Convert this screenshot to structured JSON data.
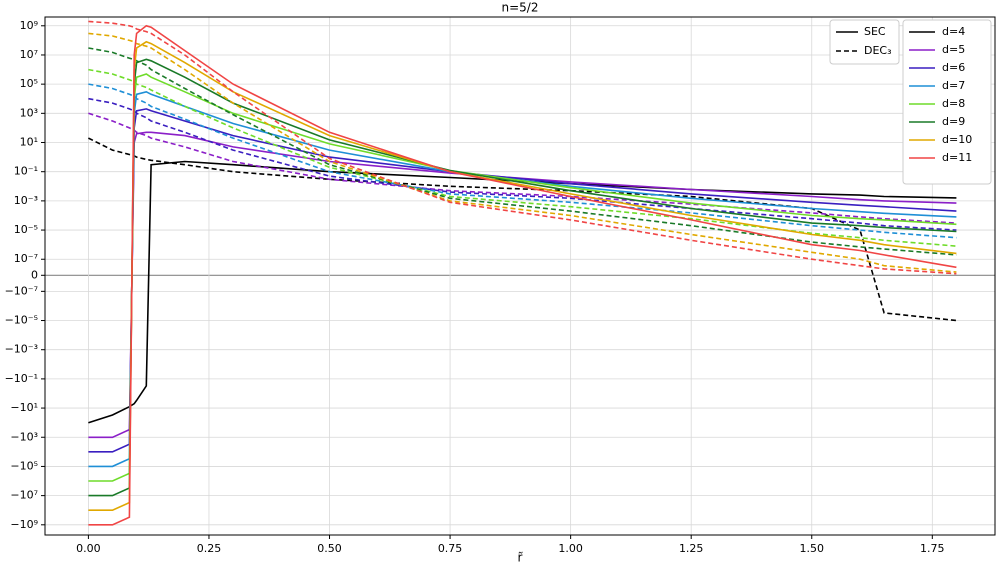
{
  "chart_data": {
    "type": "line",
    "title": "n=5/2",
    "xlabel": "r̃",
    "yscale": "symlog",
    "grid": true,
    "x": [
      0,
      0.05,
      0.085,
      0.095,
      0.1,
      0.12,
      0.13,
      0.2,
      0.3,
      0.5,
      0.75,
      1.0,
      1.25,
      1.5,
      1.6,
      1.65,
      1.8
    ],
    "xlim": [
      -0.09,
      1.88
    ],
    "xticks": [
      {
        "value": 0,
        "label": "0.00"
      },
      {
        "value": 0.25,
        "label": "0.25"
      },
      {
        "value": 0.5,
        "label": "0.50"
      },
      {
        "value": 0.75,
        "label": "0.75"
      },
      {
        "value": 1,
        "label": "1.00"
      },
      {
        "value": 1.25,
        "label": "1.25"
      },
      {
        "value": 1.5,
        "label": "1.50"
      },
      {
        "value": 1.75,
        "label": "1.75"
      }
    ],
    "ylim": [
      -5000000000.0,
      4000000000.0
    ],
    "yticks": [
      {
        "value": 1000000000.0,
        "label": "10⁹"
      },
      {
        "value": 10000000.0,
        "label": "10⁷"
      },
      {
        "value": 100000.0,
        "label": "10⁵"
      },
      {
        "value": 1000.0,
        "label": "10³"
      },
      {
        "value": 10,
        "label": "10¹"
      },
      {
        "value": 0.1,
        "label": "10⁻¹"
      },
      {
        "value": 0.001,
        "label": "10⁻³"
      },
      {
        "value": 1e-05,
        "label": "10⁻⁵"
      },
      {
        "value": 1e-07,
        "label": "10⁻⁷"
      },
      0,
      {
        "value": -1e-07,
        "label": "−10⁻⁷"
      },
      {
        "value": -1e-05,
        "label": "−10⁻⁵"
      },
      {
        "value": -0.001,
        "label": "−10⁻³"
      },
      {
        "value": -0.1,
        "label": "−10⁻¹"
      },
      {
        "value": -10,
        "label": "−10¹"
      },
      {
        "value": -1000.0,
        "label": "−10³"
      },
      {
        "value": -100000.0,
        "label": "−10⁵"
      },
      {
        "value": -10000000.0,
        "label": "−10⁷"
      },
      {
        "value": -1000000000.0,
        "label": "−10⁹"
      }
    ],
    "line_styles": [
      {
        "name": "SEC",
        "dash": false
      },
      {
        "name": "DEC₃",
        "dash": true
      }
    ],
    "series": [
      {
        "name": "d=4",
        "color": "#000000",
        "values": [
          [
            -100,
            -30,
            -8,
            -5,
            -3,
            -0.3,
            0.3,
            0.5,
            0.3,
            0.1,
            0.04,
            0.015,
            0.006,
            0.003,
            0.0025,
            0.002,
            0.0016
          ],
          [
            20,
            3,
            1.5,
            1.2,
            1,
            0.7,
            0.6,
            0.3,
            0.1,
            0.03,
            0.01,
            0.005,
            0.002,
            0.0003,
            1e-05,
            -3e-06,
            -1e-05
          ]
        ]
      },
      {
        "name": "d=5",
        "color": "#8b1fc8",
        "values": [
          [
            -1000,
            -1000,
            -300,
            10,
            40,
            50,
            50,
            30,
            5,
            0.5,
            0.08,
            0.02,
            0.006,
            0.002,
            0.0012,
            0.001,
            0.0007
          ],
          [
            1000,
            300,
            100,
            70,
            50,
            30,
            20,
            5,
            0.5,
            0.03,
            0.005,
            0.002,
            0.0006,
            0.00015,
            8e-05,
            6e-05,
            3e-05
          ]
        ]
      },
      {
        "name": "d=6",
        "color": "#3a1fc0",
        "values": [
          [
            -10000.0,
            -10000.0,
            -3000,
            100,
            1500,
            2000,
            1500,
            300,
            30,
            1,
            0.1,
            0.015,
            0.003,
            0.0008,
            0.0005,
            0.0004,
            0.0002
          ],
          [
            10000.0,
            5000,
            2000,
            1500,
            1000,
            500,
            300,
            50,
            3,
            0.05,
            0.004,
            0.0015,
            0.0003,
            6e-05,
            3e-05,
            2e-05,
            1e-05
          ]
        ]
      },
      {
        "name": "d=7",
        "color": "#1f8fd6",
        "values": [
          [
            -100000.0,
            -100000.0,
            -30000.0,
            1000,
            20000.0,
            30000.0,
            20000.0,
            3000,
            200,
            3,
            0.1,
            0.01,
            0.0015,
            0.0003,
            0.00018,
            0.00014,
            8e-05
          ],
          [
            100000.0,
            50000.0,
            20000.0,
            15000.0,
            10000.0,
            5000,
            3000,
            400,
            20,
            0.1,
            0.003,
            0.0008,
            0.00015,
            2e-05,
            1e-05,
            7e-06,
            3e-06
          ]
        ]
      },
      {
        "name": "d=8",
        "color": "#6fdc2a",
        "values": [
          [
            -1000000.0,
            -1000000.0,
            -300000.0,
            10000.0,
            300000.0,
            500000.0,
            300000.0,
            30000.0,
            1000,
            8,
            0.12,
            0.008,
            0.0007,
            0.0001,
            6e-05,
            5e-05,
            2.5e-05
          ],
          [
            1000000.0,
            500000.0,
            200000.0,
            150000.0,
            100000.0,
            60000.0,
            40000.0,
            3000,
            100,
            0.2,
            0.002,
            0.0004,
            6e-05,
            6e-06,
            3e-06,
            2e-06,
            8e-07
          ]
        ]
      },
      {
        "name": "d=9",
        "color": "#1a7a28",
        "values": [
          [
            -10000000.0,
            -10000000.0,
            -3000000.0,
            100000.0,
            3000000.0,
            5000000.0,
            4000000.0,
            300000.0,
            5000,
            15,
            0.12,
            0.005,
            0.0003,
            3e-05,
            2e-05,
            1.5e-05,
            8e-06
          ],
          [
            30000000.0,
            15000000.0,
            6000000.0,
            5000000.0,
            4000000.0,
            2000000.0,
            1000000.0,
            50000.0,
            800,
            0.3,
            0.0015,
            0.0002,
            2e-05,
            1.5e-06,
            7e-07,
            5e-07,
            2e-07
          ]
        ]
      },
      {
        "name": "d=10",
        "color": "#e0a800",
        "values": [
          [
            -100000000.0,
            -100000000.0,
            -30000000.0,
            1000000.0,
            30000000.0,
            80000000.0,
            60000000.0,
            3000000.0,
            30000.0,
            30,
            0.1,
            0.003,
            0.0001,
            5e-06,
            2e-06,
            1e-06,
            2.5e-07
          ],
          [
            300000000.0,
            200000000.0,
            100000000.0,
            80000000.0,
            60000000.0,
            40000000.0,
            30000000.0,
            1000000.0,
            5000,
            0.5,
            0.001,
            0.0001,
            5e-06,
            3e-07,
            1e-07,
            6e-08,
            2e-08
          ]
        ]
      },
      {
        "name": "d=11",
        "color": "#f04545",
        "values": [
          [
            -1000000000.0,
            -1000000000.0,
            -300000000.0,
            10000000.0,
            300000000.0,
            1000000000.0,
            800000000.0,
            20000000.0,
            100000.0,
            50,
            0.1,
            0.002,
            5e-05,
            1e-06,
            4e-07,
            2e-07,
            5e-08
          ],
          [
            2000000000.0,
            1500000000.0,
            1000000000.0,
            800000000.0,
            600000000.0,
            400000000.0,
            300000000.0,
            10000000.0,
            30000.0,
            0.8,
            0.0008,
            5e-05,
            2e-06,
            1e-07,
            6e-08,
            4e-08,
            1e-08
          ]
        ]
      }
    ]
  }
}
